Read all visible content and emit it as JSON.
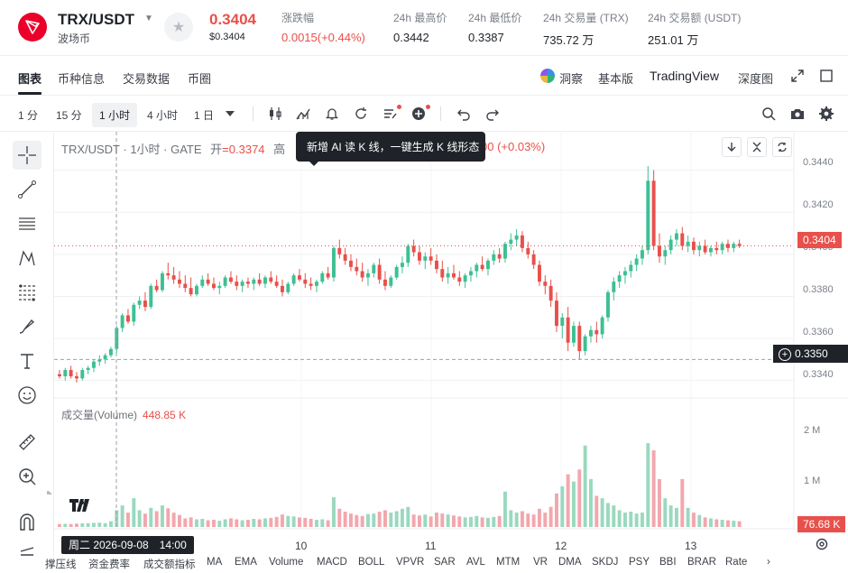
{
  "header": {
    "pair": "TRX/USDT",
    "pair_sub": "波场币",
    "price": "0.3404",
    "price_usd": "$0.3404",
    "stats": [
      {
        "label": "涨跌幅",
        "value": "0.0015(+0.44%)",
        "red": true
      },
      {
        "label": "24h 最高价",
        "value": "0.3442",
        "red": false
      },
      {
        "label": "24h 最低价",
        "value": "0.3387",
        "red": false
      },
      {
        "label": "24h 交易量 (TRX)",
        "value": "735.72 万",
        "red": false
      },
      {
        "label": "24h 交易额 (USDT)",
        "value": "251.01 万",
        "red": false
      }
    ]
  },
  "tabs": {
    "left": [
      "图表",
      "币种信息",
      "交易数据",
      "币圈"
    ],
    "dongcha": "洞察",
    "basic": "基本版",
    "tradingview": "TradingView",
    "depth": "深度图"
  },
  "toolbar": {
    "timeframes": [
      "1 分",
      "15 分",
      "1 小时",
      "4 小时",
      "1 日"
    ],
    "selected": "1 小时"
  },
  "chart": {
    "legend_prefix": "TRX/USDT · 1小时 · GATE",
    "open_label": "开",
    "open_value": "=0.3374",
    "legend_hidden": "高",
    "legend_tail": "00 (+0.03%)",
    "tooltip": "新增 AI 读 K 线，一键生成 K 线形态",
    "volume_label": "成交量(Volume)",
    "volume_value": "448.85 K",
    "last_price_tag": "0.3404",
    "crosshair_price": "0.3350",
    "volume_tag": "76.68 K",
    "date_tag": "周二 2026-09-08　14:00",
    "colors": {
      "up": "#3dc093",
      "down": "#e8504b",
      "vol_up": "#9ad9bf",
      "vol_down": "#f2a7ad"
    }
  },
  "chart_data": {
    "type": "candlestick",
    "title": "TRX/USDT · 1小时 · GATE",
    "y_ticks": [
      0.344,
      0.342,
      0.34,
      0.338,
      0.336,
      0.334
    ],
    "y_tick_labels": [
      "0.3440",
      "0.3420",
      "0.3400",
      "0.3380",
      "0.3360",
      "0.3340"
    ],
    "ylim": [
      0.3333,
      0.3448
    ],
    "x_tick_labels": [
      "10",
      "11",
      "12",
      "13"
    ],
    "volume_ticks": [
      "2 M",
      "1 M"
    ],
    "volume_max": 2600000,
    "candles": [
      [
        0.3343,
        0.3345,
        0.3341,
        0.3342,
        60000
      ],
      [
        0.3342,
        0.3346,
        0.334,
        0.3345,
        65000
      ],
      [
        0.3345,
        0.3347,
        0.3341,
        0.3342,
        62000
      ],
      [
        0.3342,
        0.3344,
        0.3339,
        0.3341,
        70000
      ],
      [
        0.3341,
        0.3346,
        0.334,
        0.3345,
        75000
      ],
      [
        0.3345,
        0.3347,
        0.3343,
        0.3346,
        80000
      ],
      [
        0.3346,
        0.335,
        0.3344,
        0.3349,
        85000
      ],
      [
        0.3349,
        0.3352,
        0.3347,
        0.335,
        90000
      ],
      [
        0.335,
        0.3353,
        0.3348,
        0.3352,
        80000
      ],
      [
        0.3352,
        0.3356,
        0.3351,
        0.3355,
        120000
      ],
      [
        0.3355,
        0.3366,
        0.3353,
        0.3365,
        350000
      ],
      [
        0.3365,
        0.3372,
        0.3363,
        0.3371,
        450000
      ],
      [
        0.3371,
        0.3374,
        0.3367,
        0.3368,
        300000
      ],
      [
        0.3368,
        0.3377,
        0.3366,
        0.3376,
        600000
      ],
      [
        0.3376,
        0.338,
        0.3374,
        0.3378,
        350000
      ],
      [
        0.3378,
        0.3382,
        0.3373,
        0.3375,
        280000
      ],
      [
        0.3375,
        0.3386,
        0.3374,
        0.3385,
        400000
      ],
      [
        0.3385,
        0.3388,
        0.3382,
        0.3383,
        330000
      ],
      [
        0.3383,
        0.3392,
        0.3382,
        0.3391,
        450000
      ],
      [
        0.3391,
        0.3396,
        0.3388,
        0.339,
        390000
      ],
      [
        0.339,
        0.3394,
        0.3386,
        0.3388,
        300000
      ],
      [
        0.3388,
        0.3392,
        0.3384,
        0.3386,
        250000
      ],
      [
        0.3386,
        0.339,
        0.3382,
        0.3384,
        180000
      ],
      [
        0.3384,
        0.3389,
        0.338,
        0.3381,
        200000
      ],
      [
        0.3381,
        0.3386,
        0.338,
        0.3385,
        160000
      ],
      [
        0.3385,
        0.339,
        0.3384,
        0.3388,
        170000
      ],
      [
        0.3388,
        0.3391,
        0.3385,
        0.3386,
        140000
      ],
      [
        0.3386,
        0.3389,
        0.3383,
        0.3384,
        150000
      ],
      [
        0.3384,
        0.3387,
        0.3381,
        0.3385,
        130000
      ],
      [
        0.3385,
        0.339,
        0.3384,
        0.3389,
        160000
      ],
      [
        0.3389,
        0.3392,
        0.3386,
        0.3387,
        180000
      ],
      [
        0.3387,
        0.339,
        0.3383,
        0.3385,
        160000
      ],
      [
        0.3385,
        0.3388,
        0.3382,
        0.3387,
        140000
      ],
      [
        0.3387,
        0.3389,
        0.3384,
        0.3386,
        150000
      ],
      [
        0.3386,
        0.3389,
        0.3383,
        0.3388,
        170000
      ],
      [
        0.3388,
        0.3391,
        0.3385,
        0.3386,
        160000
      ],
      [
        0.3386,
        0.339,
        0.3384,
        0.3389,
        180000
      ],
      [
        0.3389,
        0.3392,
        0.3386,
        0.3387,
        190000
      ],
      [
        0.3387,
        0.339,
        0.3384,
        0.3385,
        210000
      ],
      [
        0.3385,
        0.3388,
        0.338,
        0.3382,
        260000
      ],
      [
        0.3382,
        0.3387,
        0.3381,
        0.3386,
        230000
      ],
      [
        0.3386,
        0.3391,
        0.3385,
        0.339,
        220000
      ],
      [
        0.339,
        0.3393,
        0.3387,
        0.3388,
        200000
      ],
      [
        0.3388,
        0.3391,
        0.3384,
        0.3386,
        190000
      ],
      [
        0.3386,
        0.3389,
        0.3383,
        0.3385,
        170000
      ],
      [
        0.3385,
        0.3388,
        0.3382,
        0.3387,
        150000
      ],
      [
        0.3387,
        0.3392,
        0.3386,
        0.3391,
        160000
      ],
      [
        0.3391,
        0.3394,
        0.3388,
        0.3389,
        140000
      ],
      [
        0.3389,
        0.3404,
        0.3387,
        0.3403,
        620000
      ],
      [
        0.3403,
        0.3407,
        0.3398,
        0.34,
        380000
      ],
      [
        0.34,
        0.3403,
        0.3395,
        0.3397,
        320000
      ],
      [
        0.3397,
        0.34,
        0.3392,
        0.3394,
        280000
      ],
      [
        0.3394,
        0.3398,
        0.339,
        0.3392,
        250000
      ],
      [
        0.3392,
        0.3396,
        0.3387,
        0.3389,
        230000
      ],
      [
        0.3389,
        0.3393,
        0.3385,
        0.3391,
        270000
      ],
      [
        0.3391,
        0.3396,
        0.3389,
        0.3395,
        280000
      ],
      [
        0.3395,
        0.3398,
        0.3386,
        0.3388,
        320000
      ],
      [
        0.3388,
        0.3392,
        0.3383,
        0.3385,
        350000
      ],
      [
        0.3385,
        0.339,
        0.3384,
        0.3389,
        300000
      ],
      [
        0.3389,
        0.3395,
        0.3388,
        0.3394,
        330000
      ],
      [
        0.3394,
        0.3399,
        0.3391,
        0.3396,
        380000
      ],
      [
        0.3396,
        0.3405,
        0.3394,
        0.3404,
        420000
      ],
      [
        0.3404,
        0.3407,
        0.3399,
        0.3401,
        260000
      ],
      [
        0.3401,
        0.3404,
        0.3395,
        0.3397,
        240000
      ],
      [
        0.3397,
        0.3401,
        0.3393,
        0.3399,
        260000
      ],
      [
        0.3399,
        0.3403,
        0.3395,
        0.3397,
        220000
      ],
      [
        0.3397,
        0.34,
        0.3391,
        0.3393,
        300000
      ],
      [
        0.3393,
        0.3397,
        0.3387,
        0.3389,
        280000
      ],
      [
        0.3389,
        0.3394,
        0.3386,
        0.3391,
        260000
      ],
      [
        0.3391,
        0.3395,
        0.3388,
        0.3389,
        240000
      ],
      [
        0.3389,
        0.3392,
        0.3385,
        0.3387,
        220000
      ],
      [
        0.3387,
        0.3391,
        0.3384,
        0.339,
        200000
      ],
      [
        0.339,
        0.3394,
        0.3387,
        0.3392,
        210000
      ],
      [
        0.3392,
        0.3396,
        0.3389,
        0.3395,
        230000
      ],
      [
        0.3395,
        0.3399,
        0.3392,
        0.3393,
        200000
      ],
      [
        0.3393,
        0.3398,
        0.339,
        0.3397,
        190000
      ],
      [
        0.3397,
        0.3402,
        0.3395,
        0.34,
        210000
      ],
      [
        0.34,
        0.3403,
        0.3396,
        0.3398,
        230000
      ],
      [
        0.3398,
        0.3406,
        0.3396,
        0.3405,
        740000
      ],
      [
        0.3405,
        0.341,
        0.3402,
        0.3407,
        350000
      ],
      [
        0.3407,
        0.3412,
        0.3404,
        0.3409,
        300000
      ],
      [
        0.3409,
        0.3411,
        0.3401,
        0.3403,
        330000
      ],
      [
        0.3403,
        0.3406,
        0.3398,
        0.34,
        280000
      ],
      [
        0.34,
        0.3402,
        0.3393,
        0.3395,
        260000
      ],
      [
        0.3395,
        0.3397,
        0.3385,
        0.3387,
        380000
      ],
      [
        0.3387,
        0.339,
        0.3381,
        0.3385,
        300000
      ],
      [
        0.3385,
        0.3388,
        0.3375,
        0.3378,
        420000
      ],
      [
        0.3378,
        0.3382,
        0.3363,
        0.3366,
        700000
      ],
      [
        0.3366,
        0.3372,
        0.336,
        0.337,
        850000
      ],
      [
        0.337,
        0.3375,
        0.3354,
        0.3358,
        1100000
      ],
      [
        0.3358,
        0.3368,
        0.3356,
        0.3366,
        950000
      ],
      [
        0.3366,
        0.3368,
        0.335,
        0.3354,
        1200000
      ],
      [
        0.3354,
        0.3362,
        0.3352,
        0.3361,
        1700000
      ],
      [
        0.3361,
        0.3366,
        0.3358,
        0.3364,
        1000000
      ],
      [
        0.3364,
        0.3368,
        0.3358,
        0.3362,
        650000
      ],
      [
        0.3362,
        0.3371,
        0.336,
        0.337,
        600000
      ],
      [
        0.337,
        0.3383,
        0.3368,
        0.3382,
        500000
      ],
      [
        0.3382,
        0.3389,
        0.3378,
        0.3387,
        450000
      ],
      [
        0.3387,
        0.3392,
        0.3384,
        0.339,
        350000
      ],
      [
        0.339,
        0.3394,
        0.3386,
        0.3392,
        300000
      ],
      [
        0.3392,
        0.3397,
        0.3389,
        0.3395,
        320000
      ],
      [
        0.3395,
        0.34,
        0.3392,
        0.3398,
        280000
      ],
      [
        0.3398,
        0.3404,
        0.3395,
        0.3402,
        300000
      ],
      [
        0.3402,
        0.3442,
        0.34,
        0.3435,
        1750000
      ],
      [
        0.3435,
        0.344,
        0.3402,
        0.3404,
        1600000
      ],
      [
        0.3404,
        0.341,
        0.3396,
        0.3399,
        1000000
      ],
      [
        0.3399,
        0.3404,
        0.3395,
        0.3402,
        600000
      ],
      [
        0.3402,
        0.3409,
        0.34,
        0.3407,
        450000
      ],
      [
        0.3407,
        0.3412,
        0.3404,
        0.341,
        400000
      ],
      [
        0.341,
        0.3413,
        0.3402,
        0.3404,
        1000000
      ],
      [
        0.3404,
        0.3409,
        0.3401,
        0.3406,
        400000
      ],
      [
        0.3406,
        0.3408,
        0.34,
        0.3402,
        300000
      ],
      [
        0.3402,
        0.3406,
        0.3399,
        0.3404,
        250000
      ],
      [
        0.3404,
        0.3407,
        0.34,
        0.3401,
        200000
      ],
      [
        0.3401,
        0.3404,
        0.3399,
        0.3403,
        180000
      ],
      [
        0.3403,
        0.3406,
        0.34,
        0.3402,
        160000
      ],
      [
        0.3402,
        0.3406,
        0.34,
        0.3405,
        150000
      ],
      [
        0.3405,
        0.3407,
        0.3401,
        0.3403,
        140000
      ],
      [
        0.3403,
        0.3406,
        0.3401,
        0.3405,
        130000
      ],
      [
        0.3405,
        0.3407,
        0.3403,
        0.3404,
        120000
      ]
    ]
  },
  "indicators": [
    "撑压线",
    "资金费率",
    "成交额指标",
    "MA",
    "EMA",
    "Volume",
    "MACD",
    "BOLL",
    "VPVR",
    "SAR",
    "AVL",
    "MTM",
    "VR",
    "DMA",
    "SKDJ",
    "PSY",
    "BBI",
    "BRAR",
    "Rate"
  ]
}
